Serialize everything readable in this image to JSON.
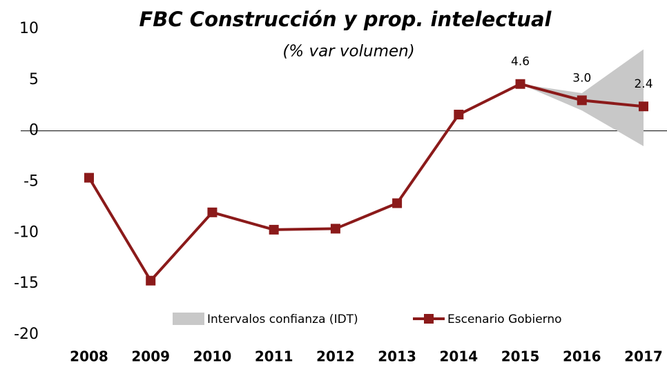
{
  "chart_data": {
    "type": "line",
    "title": "FBC Construcción y prop. intelectual",
    "subtitle": "(% var volumen)",
    "categories": [
      "2008",
      "2009",
      "2010",
      "2011",
      "2012",
      "2013",
      "2014",
      "2015",
      "2016",
      "2017"
    ],
    "band": {
      "name": "Intervalos confianza (IDT)",
      "color": "#c8c8c8",
      "lower": [
        null,
        null,
        null,
        null,
        null,
        null,
        null,
        4.6,
        2.0,
        -1.5
      ],
      "upper": [
        null,
        null,
        null,
        null,
        null,
        null,
        null,
        4.6,
        3.7,
        8.0
      ]
    },
    "series": [
      {
        "name": "Escenario Gobierno",
        "color": "#8b1a1a",
        "values": [
          -4.6,
          -14.7,
          -8.0,
          -9.7,
          -9.6,
          -7.1,
          1.6,
          4.6,
          3.0,
          2.4
        ],
        "value_labels": [
          null,
          null,
          null,
          null,
          null,
          null,
          null,
          "4.6",
          "3.0",
          "2.4"
        ]
      }
    ],
    "ylim": [
      -20,
      10
    ],
    "yticks": [
      -20,
      -15,
      -10,
      -5,
      0,
      5,
      10
    ],
    "zero_line": true
  }
}
